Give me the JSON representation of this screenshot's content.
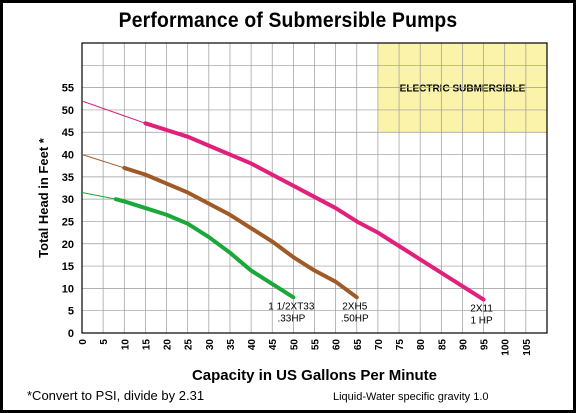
{
  "chart_data": {
    "type": "line",
    "title": "Performance of Submersible Pumps",
    "xlabel": "Capacity in US Gallons Per Minute",
    "ylabel": "Total Head in Feet *",
    "xlim": [
      0,
      110
    ],
    "ylim": [
      0,
      65
    ],
    "x_ticks": [
      "0",
      "5",
      "10",
      "15",
      "20",
      "25",
      "30",
      "35",
      "40",
      "45",
      "50",
      "55",
      "60",
      "65",
      "70",
      "75",
      "80",
      "85",
      "90",
      "95",
      "100",
      "105"
    ],
    "y_ticks": [
      "0",
      "5",
      "10",
      "15",
      "20",
      "25",
      "30",
      "35",
      "40",
      "45",
      "50",
      "55"
    ],
    "grid": true,
    "legend_box": "ELECTRIC SUBMERSIBLE",
    "series": [
      {
        "name": "1 1/2XT33 .33HP",
        "label_lines": [
          "1 1/2XT33",
          ".33HP"
        ],
        "color": "#1aa838",
        "x": [
          0,
          8,
          10,
          15,
          20,
          25,
          30,
          35,
          40,
          45,
          50
        ],
        "y": [
          31.5,
          30,
          29.5,
          28,
          26.5,
          24.5,
          21.5,
          18,
          14,
          11,
          8
        ],
        "dashed_until": 8
      },
      {
        "name": "2XH5 .50HP",
        "label_lines": [
          "2XH5",
          ".50HP"
        ],
        "color": "#a05a28",
        "x": [
          0,
          10,
          15,
          20,
          25,
          30,
          35,
          40,
          45,
          50,
          55,
          60,
          65
        ],
        "y": [
          40,
          37,
          35.5,
          33.5,
          31.5,
          29,
          26.5,
          23.5,
          20.5,
          17,
          14,
          11.5,
          8
        ],
        "dashed_until": 10
      },
      {
        "name": "2X11 1 HP",
        "label_lines": [
          "2X11",
          "1 HP"
        ],
        "color": "#e0207a",
        "x": [
          0,
          15,
          20,
          25,
          30,
          35,
          40,
          45,
          50,
          55,
          60,
          65,
          70,
          75,
          80,
          85,
          90,
          95
        ],
        "y": [
          52,
          47,
          45.5,
          44,
          42,
          40,
          38,
          35.5,
          33,
          30.5,
          28,
          25,
          22.5,
          19.5,
          16.5,
          13.5,
          10.5,
          7.5
        ],
        "dashed_until": 15
      }
    ]
  },
  "footnote": "*Convert to PSI, divide by 2.31",
  "gravity_note": "Liquid-Water specific gravity 1.0",
  "colors": {
    "legend_bg": "#fbf3a9",
    "grid": "#9a9a9a"
  }
}
